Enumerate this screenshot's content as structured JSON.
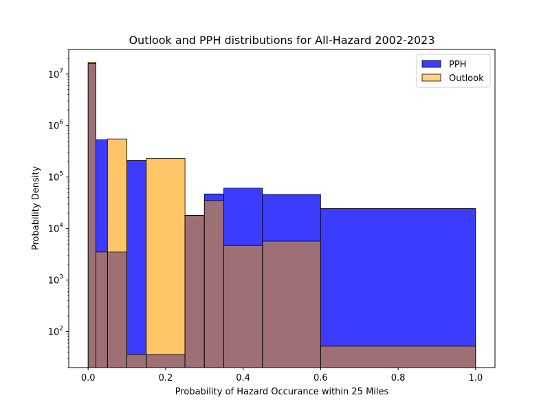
{
  "chart_data": {
    "type": "histogram",
    "title": "Outlook and PPH distributions for All-Hazard 2002-2023",
    "xlabel": "Probability of Hazard Occurance within 25 Miles",
    "ylabel": "Probability Density",
    "xlim": [
      -0.05,
      1.05
    ],
    "ylim": [
      20,
      30000000
    ],
    "yscale": "log",
    "grid": false,
    "legend_position": "top-right",
    "x_ticks": [
      {
        "value": 0.0,
        "label": "0.0"
      },
      {
        "value": 0.2,
        "label": "0.2"
      },
      {
        "value": 0.4,
        "label": "0.4"
      },
      {
        "value": 0.6,
        "label": "0.6"
      },
      {
        "value": 0.8,
        "label": "0.8"
      },
      {
        "value": 1.0,
        "label": "1.0"
      }
    ],
    "y_ticks": [
      {
        "value": 100,
        "base": "10",
        "exp": "2"
      },
      {
        "value": 1000,
        "base": "10",
        "exp": "3"
      },
      {
        "value": 10000,
        "base": "10",
        "exp": "4"
      },
      {
        "value": 100000,
        "base": "10",
        "exp": "5"
      },
      {
        "value": 1000000,
        "base": "10",
        "exp": "6"
      },
      {
        "value": 10000000,
        "base": "10",
        "exp": "7"
      }
    ],
    "bin_edges": [
      0.0,
      0.02,
      0.05,
      0.1,
      0.15,
      0.25,
      0.3,
      0.35,
      0.45,
      0.6,
      1.0
    ],
    "series": [
      {
        "name": "PPH",
        "color": "#0000ff",
        "values": [
          16000000,
          530000,
          3500,
          210000,
          36,
          18000,
          47000,
          61000,
          46000,
          24500
        ]
      },
      {
        "name": "Outlook",
        "color": "#ffa500",
        "values": [
          17000000,
          3500,
          550000,
          36,
          230000,
          18000,
          35000,
          4700,
          5700,
          52
        ]
      }
    ],
    "overlap_color": "#9e7075"
  }
}
